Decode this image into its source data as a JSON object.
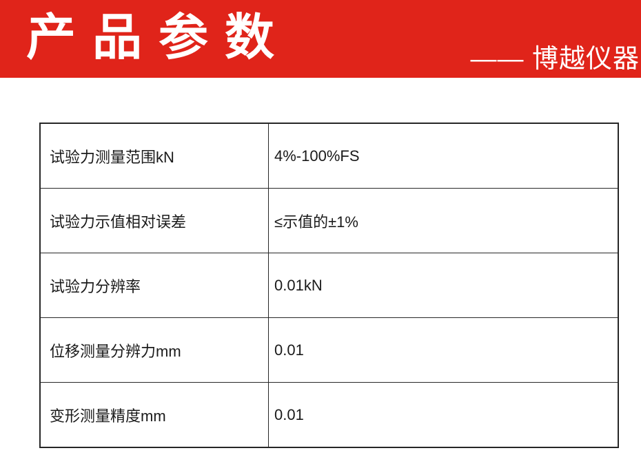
{
  "header": {
    "title": "产 品 参 数",
    "brand": "—— 博越仪器",
    "banner_color": "#e0241a",
    "title_color": "#ffffff"
  },
  "table": {
    "border_color": "#262626",
    "text_color": "#1a1a1a",
    "rows": [
      {
        "label": "试验力测量范围kN",
        "value": "4%-100%FS"
      },
      {
        "label": "试验力示值相对误差",
        "value": "≤示值的±1%"
      },
      {
        "label": "试验力分辨率",
        "value": "0.01kN"
      },
      {
        "label": "位移测量分辨力mm",
        "value": "0.01"
      },
      {
        "label": "变形测量精度mm",
        "value": "0.01"
      }
    ]
  }
}
